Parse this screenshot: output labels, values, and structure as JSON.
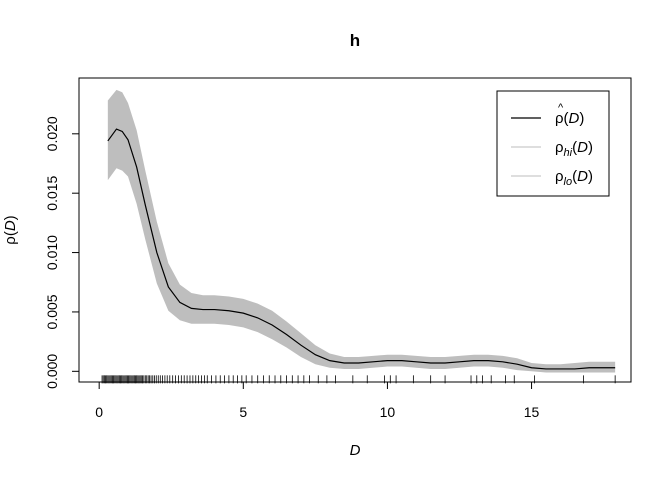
{
  "chart_data": {
    "type": "line",
    "title": "h",
    "xlabel": "D",
    "ylabel": "ρ(D)",
    "xlim": [
      -0.7,
      18.45
    ],
    "ylim": [
      -0.0009,
      0.0247
    ],
    "x_ticks": [
      0,
      5,
      10,
      15
    ],
    "y_ticks": [
      0.0,
      0.005,
      0.01,
      0.015,
      0.02
    ],
    "x_tick_labels": [
      "0",
      "5",
      "10",
      "15"
    ],
    "y_tick_labels": [
      "0.000",
      "0.005",
      "0.010",
      "0.015",
      "0.020"
    ],
    "grid": false,
    "legend_position": "top-right",
    "legend": [
      {
        "key": "est",
        "base": "ρ",
        "hat": "^",
        "sub": "",
        "arg": "D",
        "color": "#000000"
      },
      {
        "key": "hi",
        "base": "ρ",
        "hat": "",
        "sub": "hi",
        "arg": "D",
        "color": "#bebebe"
      },
      {
        "key": "lo",
        "base": "ρ",
        "hat": "",
        "sub": "lo",
        "arg": "D",
        "color": "#bebebe"
      }
    ],
    "band_color": "#bebebe",
    "line_color": "#000000",
    "series": [
      {
        "name": "estimate",
        "x": [
          0.3,
          0.6,
          0.8,
          1.0,
          1.3,
          1.6,
          2.0,
          2.4,
          2.8,
          3.2,
          3.6,
          4.0,
          4.5,
          5.0,
          5.5,
          6.0,
          6.5,
          7.0,
          7.5,
          8.0,
          8.5,
          9.0,
          9.5,
          10.0,
          10.5,
          11.0,
          11.5,
          12.0,
          12.5,
          13.0,
          13.5,
          14.0,
          14.5,
          15.0,
          15.5,
          16.0,
          16.5,
          17.0,
          17.5,
          17.9
        ],
        "values": [
          0.0194,
          0.0204,
          0.0202,
          0.0195,
          0.0172,
          0.014,
          0.01,
          0.0071,
          0.0058,
          0.0053,
          0.0052,
          0.0052,
          0.0051,
          0.0049,
          0.0045,
          0.0039,
          0.0031,
          0.0022,
          0.0014,
          0.0009,
          0.0007,
          0.0007,
          0.0008,
          0.0009,
          0.0009,
          0.0008,
          0.0007,
          0.0007,
          0.0008,
          0.0009,
          0.0009,
          0.0008,
          0.0006,
          0.0003,
          0.0002,
          0.0002,
          0.0002,
          0.0003,
          0.0003,
          0.0003
        ]
      },
      {
        "name": "hi",
        "x": [
          0.3,
          0.6,
          0.8,
          1.0,
          1.3,
          1.6,
          2.0,
          2.4,
          2.8,
          3.2,
          3.6,
          4.0,
          4.5,
          5.0,
          5.5,
          6.0,
          6.5,
          7.0,
          7.5,
          8.0,
          8.5,
          9.0,
          9.5,
          10.0,
          10.5,
          11.0,
          11.5,
          12.0,
          12.5,
          13.0,
          13.5,
          14.0,
          14.5,
          15.0,
          15.5,
          16.0,
          16.5,
          17.0,
          17.5,
          17.9
        ],
        "values": [
          0.0228,
          0.0237,
          0.0235,
          0.0226,
          0.0203,
          0.0169,
          0.0126,
          0.0091,
          0.0073,
          0.0066,
          0.0064,
          0.0064,
          0.0063,
          0.0061,
          0.0057,
          0.0051,
          0.0042,
          0.0032,
          0.0022,
          0.0015,
          0.0012,
          0.0012,
          0.0013,
          0.0014,
          0.0014,
          0.0013,
          0.0012,
          0.0012,
          0.0013,
          0.0014,
          0.0014,
          0.0013,
          0.0011,
          0.0007,
          0.0006,
          0.0006,
          0.0007,
          0.0008,
          0.0008,
          0.0008
        ]
      },
      {
        "name": "lo",
        "x": [
          0.3,
          0.6,
          0.8,
          1.0,
          1.3,
          1.6,
          2.0,
          2.4,
          2.8,
          3.2,
          3.6,
          4.0,
          4.5,
          5.0,
          5.5,
          6.0,
          6.5,
          7.0,
          7.5,
          8.0,
          8.5,
          9.0,
          9.5,
          10.0,
          10.5,
          11.0,
          11.5,
          12.0,
          12.5,
          13.0,
          13.5,
          14.0,
          14.5,
          15.0,
          15.5,
          16.0,
          16.5,
          17.0,
          17.5,
          17.9
        ],
        "values": [
          0.0161,
          0.0171,
          0.0169,
          0.0164,
          0.0141,
          0.0111,
          0.0074,
          0.0051,
          0.0043,
          0.004,
          0.004,
          0.004,
          0.0039,
          0.0037,
          0.0033,
          0.0027,
          0.002,
          0.0012,
          0.0006,
          0.0003,
          0.0002,
          0.0002,
          0.0003,
          0.0004,
          0.0004,
          0.0003,
          0.0002,
          0.0002,
          0.0003,
          0.0004,
          0.0004,
          0.0003,
          0.0001,
          0.0,
          -0.0001,
          -0.0001,
          -0.0001,
          -0.0001,
          -0.0001,
          -0.0001
        ]
      }
    ],
    "rug": [
      0.1,
      0.14,
      0.18,
      0.22,
      0.26,
      0.3,
      0.34,
      0.38,
      0.42,
      0.46,
      0.5,
      0.54,
      0.58,
      0.62,
      0.66,
      0.7,
      0.74,
      0.78,
      0.82,
      0.86,
      0.9,
      0.94,
      0.98,
      1.02,
      1.06,
      1.1,
      1.14,
      1.18,
      1.22,
      1.26,
      1.3,
      1.34,
      1.38,
      1.42,
      1.46,
      1.5,
      1.55,
      1.6,
      1.65,
      1.7,
      1.75,
      1.8,
      1.86,
      1.92,
      1.98,
      2.05,
      2.12,
      2.2,
      2.28,
      2.36,
      2.45,
      2.55,
      2.65,
      2.75,
      2.85,
      2.95,
      3.05,
      3.15,
      3.25,
      3.35,
      3.45,
      3.55,
      3.65,
      3.75,
      3.9,
      4.05,
      4.2,
      4.35,
      4.5,
      4.65,
      4.8,
      4.95,
      5.1,
      5.3,
      5.5,
      5.7,
      5.9,
      6.1,
      6.3,
      6.5,
      6.7,
      6.9,
      7.1,
      7.3,
      7.6,
      7.9,
      8.2,
      8.8,
      9.3,
      9.9,
      10.1,
      10.3,
      10.9,
      11.5,
      12.0,
      12.9,
      13.1,
      13.3,
      13.6,
      14.1,
      14.4,
      15.1,
      16.8,
      17.9
    ]
  }
}
